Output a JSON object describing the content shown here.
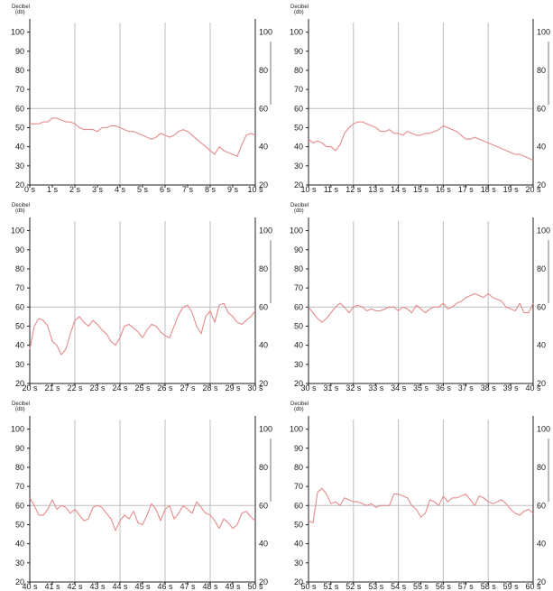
{
  "chart_data": [
    {
      "type": "line",
      "ylabel": "Decibel",
      "yunit": "(db)",
      "x": [
        0,
        0.2,
        0.4,
        0.6,
        0.8,
        1.0,
        1.2,
        1.4,
        1.6,
        1.8,
        2.0,
        2.2,
        2.4,
        2.6,
        2.8,
        3.0,
        3.2,
        3.4,
        3.6,
        3.8,
        4.0,
        4.2,
        4.4,
        4.6,
        4.8,
        5.0,
        5.2,
        5.4,
        5.6,
        5.8,
        6.0,
        6.2,
        6.4,
        6.6,
        6.8,
        7.0,
        7.2,
        7.4,
        7.6,
        7.8,
        8.0,
        8.2,
        8.4,
        8.6,
        8.8,
        9.0,
        9.2,
        9.4,
        9.6,
        9.8,
        10.0
      ],
      "series": [
        {
          "color": "#e58b8b",
          "values": [
            52,
            52,
            52,
            53,
            53,
            55,
            55,
            54,
            53,
            53,
            52,
            50,
            49,
            49,
            49,
            48,
            50,
            50,
            51,
            51,
            50,
            49,
            48,
            48,
            47,
            46,
            45,
            44,
            45,
            47,
            46,
            45,
            46,
            48,
            49,
            48,
            46,
            44,
            42,
            40,
            38,
            36,
            40,
            38,
            37,
            36,
            35,
            41,
            46,
            47,
            46
          ]
        }
      ],
      "xticks": [
        "0 s",
        "1 s",
        "2 s",
        "3 s",
        "4 s",
        "5 s",
        "6 s",
        "7 s",
        "8 s",
        "9 s",
        "10 s"
      ],
      "yticks_left": [
        "20",
        "30",
        "40",
        "50",
        "60",
        "70",
        "80",
        "90",
        "100"
      ],
      "yticks_right": [
        "20",
        "40",
        "60",
        "80",
        "100"
      ],
      "ylim": [
        20,
        105
      ]
    },
    {
      "type": "line",
      "ylabel": "Decibel",
      "yunit": "(db)",
      "x": [
        10.0,
        10.2,
        10.4,
        10.6,
        10.8,
        11.0,
        11.2,
        11.4,
        11.6,
        11.8,
        12.0,
        12.2,
        12.4,
        12.6,
        12.8,
        13.0,
        13.2,
        13.4,
        13.6,
        13.8,
        14.0,
        14.2,
        14.4,
        14.6,
        14.8,
        15.0,
        15.2,
        15.4,
        15.6,
        15.8,
        16.0,
        16.2,
        16.4,
        16.6,
        16.8,
        17.0,
        17.2,
        17.4,
        17.6,
        17.8,
        18.0,
        18.2,
        18.4,
        18.6,
        18.8,
        19.0,
        19.2,
        19.4,
        19.6,
        19.8,
        20.0
      ],
      "series": [
        {
          "color": "#e58b8b",
          "values": [
            44,
            42,
            43,
            42,
            40,
            40,
            38,
            41,
            47,
            50,
            52,
            53,
            53,
            52,
            51,
            50,
            48,
            48,
            49,
            47,
            47,
            46,
            48,
            47,
            46,
            46,
            47,
            47,
            48,
            49,
            51,
            50,
            49,
            48,
            46,
            44,
            44,
            45,
            44,
            43,
            42,
            41,
            40,
            39,
            38,
            37,
            36,
            36,
            35,
            34,
            33
          ]
        }
      ],
      "xticks": [
        "10 s",
        "11 s",
        "12 s",
        "13 s",
        "14 s",
        "15 s",
        "16 s",
        "17 s",
        "18 s",
        "19 s",
        "20 s"
      ],
      "yticks_left": [
        "20",
        "30",
        "40",
        "50",
        "60",
        "70",
        "80",
        "90",
        "100"
      ],
      "yticks_right": [
        "20",
        "40",
        "60",
        "80",
        "100"
      ],
      "ylim": [
        20,
        105
      ]
    },
    {
      "type": "line",
      "ylabel": "Decibel",
      "yunit": "(db)",
      "x": [
        20.0,
        20.2,
        20.4,
        20.6,
        20.8,
        21.0,
        21.2,
        21.4,
        21.6,
        21.8,
        22.0,
        22.2,
        22.4,
        22.6,
        22.8,
        23.0,
        23.2,
        23.4,
        23.6,
        23.8,
        24.0,
        24.2,
        24.4,
        24.6,
        24.8,
        25.0,
        25.2,
        25.4,
        25.6,
        25.8,
        26.0,
        26.2,
        26.4,
        26.6,
        26.8,
        27.0,
        27.2,
        27.4,
        27.6,
        27.8,
        28.0,
        28.2,
        28.4,
        28.6,
        28.8,
        29.0,
        29.2,
        29.4,
        29.6,
        29.8,
        30.0
      ],
      "series": [
        {
          "color": "#e58b8b",
          "values": [
            38,
            50,
            54,
            53,
            50,
            42,
            40,
            35,
            38,
            46,
            53,
            55,
            52,
            50,
            53,
            51,
            48,
            46,
            42,
            40,
            44,
            50,
            51,
            49,
            47,
            44,
            48,
            51,
            50,
            47,
            45,
            44,
            50,
            56,
            60,
            61,
            57,
            50,
            46,
            55,
            58,
            52,
            61,
            62,
            57,
            55,
            52,
            51,
            53,
            55,
            58
          ]
        }
      ],
      "xticks": [
        "20 s",
        "21 s",
        "22 s",
        "23 s",
        "24 s",
        "25 s",
        "26 s",
        "27 s",
        "28 s",
        "29 s",
        "30 s"
      ],
      "yticks_left": [
        "20",
        "30",
        "40",
        "50",
        "60",
        "70",
        "80",
        "90",
        "100"
      ],
      "yticks_right": [
        "20",
        "40",
        "60",
        "80",
        "100"
      ],
      "ylim": [
        20,
        105
      ]
    },
    {
      "type": "line",
      "ylabel": "Decibel",
      "yunit": "(db)",
      "x": [
        30.0,
        30.2,
        30.4,
        30.6,
        30.8,
        31.0,
        31.2,
        31.4,
        31.6,
        31.8,
        32.0,
        32.2,
        32.4,
        32.6,
        32.8,
        33.0,
        33.2,
        33.4,
        33.6,
        33.8,
        34.0,
        34.2,
        34.4,
        34.6,
        34.8,
        35.0,
        35.2,
        35.4,
        35.6,
        35.8,
        36.0,
        36.2,
        36.4,
        36.6,
        36.8,
        37.0,
        37.2,
        37.4,
        37.6,
        37.8,
        38.0,
        38.2,
        38.4,
        38.6,
        38.8,
        39.0,
        39.2,
        39.4,
        39.6,
        39.8,
        40.0
      ],
      "series": [
        {
          "color": "#e58b8b",
          "values": [
            60,
            57,
            54,
            52,
            54,
            57,
            60,
            62,
            60,
            57,
            60,
            61,
            60,
            58,
            59,
            58,
            58,
            59,
            60,
            60,
            58,
            60,
            59,
            57,
            61,
            59,
            57,
            59,
            60,
            60,
            62,
            59,
            60,
            62,
            63,
            65,
            66,
            67,
            66,
            65,
            67,
            65,
            64,
            63,
            60,
            59,
            58,
            62,
            57,
            57,
            62
          ]
        }
      ],
      "xticks": [
        "30 s",
        "31 s",
        "32 s",
        "33 s",
        "34 s",
        "35 s",
        "36 s",
        "37 s",
        "38 s",
        "39 s",
        "40 s"
      ],
      "yticks_left": [
        "20",
        "30",
        "40",
        "50",
        "60",
        "70",
        "80",
        "90",
        "100"
      ],
      "yticks_right": [
        "20",
        "40",
        "60",
        "80",
        "100"
      ],
      "ylim": [
        20,
        105
      ]
    },
    {
      "type": "line",
      "ylabel": "Decibel",
      "yunit": "(db)",
      "x": [
        40.0,
        40.2,
        40.4,
        40.6,
        40.8,
        41.0,
        41.2,
        41.4,
        41.6,
        41.8,
        42.0,
        42.2,
        42.4,
        42.6,
        42.8,
        43.0,
        43.2,
        43.4,
        43.6,
        43.8,
        44.0,
        44.2,
        44.4,
        44.6,
        44.8,
        45.0,
        45.2,
        45.4,
        45.6,
        45.8,
        46.0,
        46.2,
        46.4,
        46.6,
        46.8,
        47.0,
        47.2,
        47.4,
        47.6,
        47.8,
        48.0,
        48.2,
        48.4,
        48.6,
        48.8,
        49.0,
        49.2,
        49.4,
        49.6,
        49.8,
        50.0
      ],
      "series": [
        {
          "color": "#e58b8b",
          "values": [
            64,
            60,
            55,
            55,
            58,
            63,
            58,
            60,
            59,
            56,
            58,
            55,
            52,
            53,
            59,
            60,
            59,
            56,
            53,
            47,
            52,
            55,
            53,
            57,
            51,
            50,
            55,
            61,
            58,
            52,
            58,
            60,
            53,
            56,
            60,
            58,
            56,
            62,
            59,
            56,
            55,
            52,
            48,
            53,
            51,
            48,
            50,
            56,
            57,
            54,
            52
          ]
        }
      ],
      "xticks": [
        "40 s",
        "41 s",
        "42 s",
        "43 s",
        "44 s",
        "45 s",
        "46 s",
        "47 s",
        "48 s",
        "49 s",
        "50 s"
      ],
      "yticks_left": [
        "20",
        "30",
        "40",
        "50",
        "60",
        "70",
        "80",
        "90",
        "100"
      ],
      "yticks_right": [
        "20",
        "40",
        "60",
        "80",
        "100"
      ],
      "ylim": [
        20,
        105
      ]
    },
    {
      "type": "line",
      "ylabel": "Decibel",
      "yunit": "(db)",
      "x": [
        50.0,
        50.2,
        50.4,
        50.6,
        50.8,
        51.0,
        51.2,
        51.4,
        51.6,
        51.8,
        52.0,
        52.2,
        52.4,
        52.6,
        52.8,
        53.0,
        53.2,
        53.4,
        53.6,
        53.8,
        54.0,
        54.2,
        54.4,
        54.6,
        54.8,
        55.0,
        55.2,
        55.4,
        55.6,
        55.8,
        56.0,
        56.2,
        56.4,
        56.6,
        56.8,
        57.0,
        57.2,
        57.4,
        57.6,
        57.8,
        58.0,
        58.2,
        58.4,
        58.6,
        58.8,
        59.0,
        59.2,
        59.4,
        59.6,
        59.8,
        60.0
      ],
      "series": [
        {
          "color": "#e58b8b",
          "values": [
            52,
            51,
            67,
            69,
            66,
            61,
            62,
            60,
            64,
            63,
            62,
            62,
            61,
            60,
            61,
            59,
            60,
            60,
            60,
            66,
            66,
            65,
            64,
            60,
            58,
            54,
            56,
            63,
            62,
            60,
            65,
            62,
            64,
            64,
            65,
            66,
            63,
            60,
            65,
            64,
            62,
            61,
            62,
            63,
            61,
            58,
            56,
            55,
            57,
            58,
            56
          ]
        }
      ],
      "xticks": [
        "50 s",
        "51 s",
        "52 s",
        "53 s",
        "54 s",
        "55 s",
        "56 s",
        "57 s",
        "58 s",
        "59 s",
        "60 s"
      ],
      "yticks_left": [
        "20",
        "30",
        "40",
        "50",
        "60",
        "70",
        "80",
        "90",
        "100"
      ],
      "yticks_right": [
        "20",
        "40",
        "60",
        "80",
        "100"
      ],
      "ylim": [
        20,
        105
      ]
    }
  ]
}
